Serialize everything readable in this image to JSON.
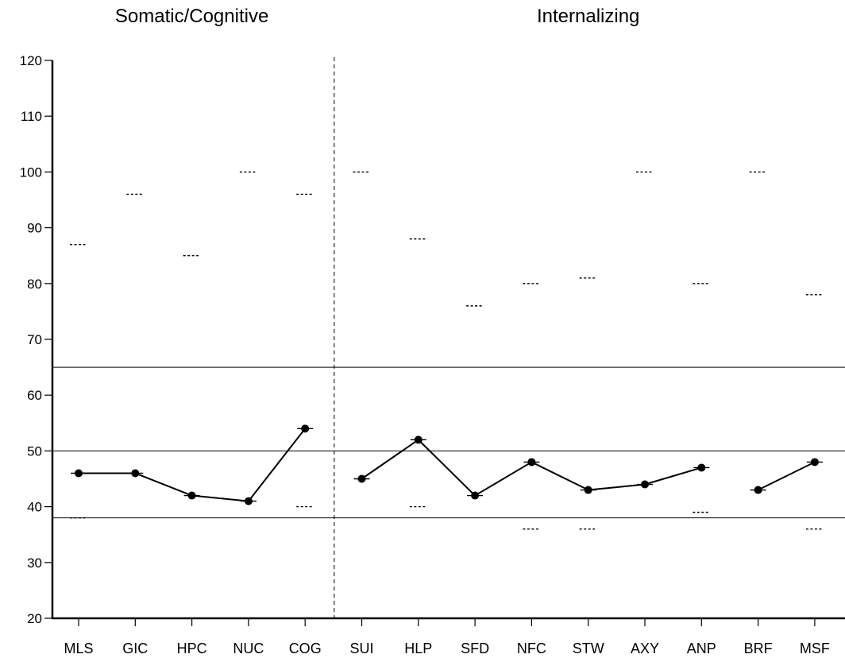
{
  "chart_data": {
    "type": "line",
    "groups": [
      {
        "title": "Somatic/Cognitive",
        "categories": [
          "MLS",
          "GIC",
          "HPC",
          "NUC",
          "COG"
        ]
      },
      {
        "title": "Internalizing",
        "categories": [
          "SUI",
          "HLP",
          "SFD",
          "NFC",
          "STW",
          "AXY",
          "ANP",
          "BRF",
          "MSF"
        ]
      }
    ],
    "categories": [
      "MLS",
      "GIC",
      "HPC",
      "NUC",
      "COG",
      "SUI",
      "HLP",
      "SFD",
      "NFC",
      "STW",
      "AXY",
      "ANP",
      "BRF",
      "MSF"
    ],
    "series": [
      {
        "values": [
          46,
          46,
          42,
          41,
          54,
          45,
          52,
          42,
          48,
          43,
          44,
          47,
          43,
          48
        ]
      }
    ],
    "connect_segments": [
      [
        0,
        1
      ],
      [
        1,
        2
      ],
      [
        2,
        3
      ],
      [
        3,
        4
      ],
      [
        5,
        6
      ],
      [
        6,
        7
      ],
      [
        7,
        8
      ],
      [
        8,
        9
      ],
      [
        9,
        10
      ],
      [
        10,
        11
      ],
      [
        12,
        13
      ]
    ],
    "range_upper": [
      87,
      96,
      85,
      100,
      96,
      100,
      88,
      76,
      80,
      81,
      100,
      80,
      100,
      78
    ],
    "range_lower": [
      38,
      null,
      null,
      null,
      40,
      null,
      40,
      null,
      36,
      36,
      null,
      39,
      null,
      36
    ],
    "reference_lines": [
      65,
      50,
      38
    ],
    "ylim": [
      20,
      120
    ],
    "yticks": [
      20,
      30,
      40,
      50,
      60,
      70,
      80,
      90,
      100,
      110,
      120
    ],
    "xlabel": "",
    "ylabel": "",
    "grid": false,
    "legend": "none"
  }
}
